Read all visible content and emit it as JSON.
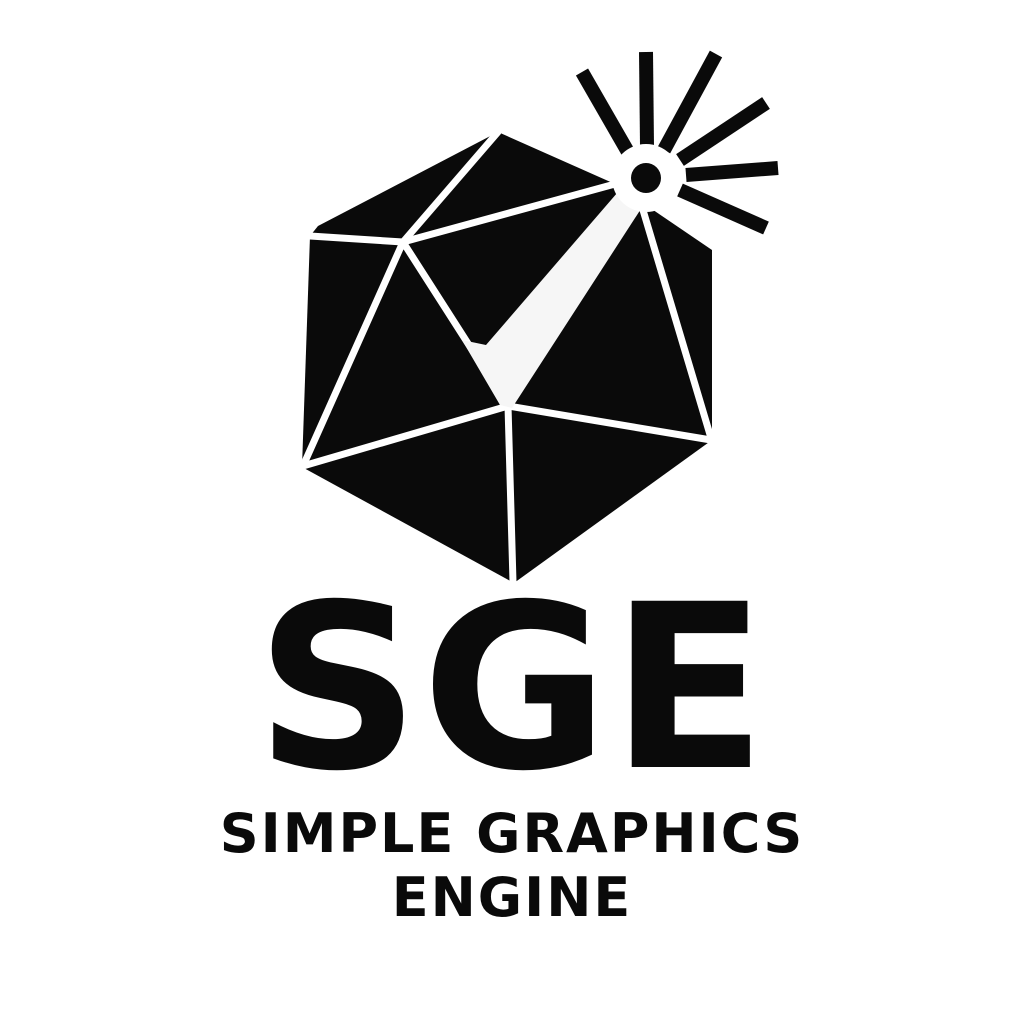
{
  "logo": {
    "abbreviation": "SGE",
    "name_line1": "SIMPLE GRAPHICS",
    "name_line2": "ENGINE",
    "colors": {
      "ink": "#0a0a0a",
      "background": "#ffffff"
    },
    "icon": "icosahedron-with-light-ray-icon"
  }
}
